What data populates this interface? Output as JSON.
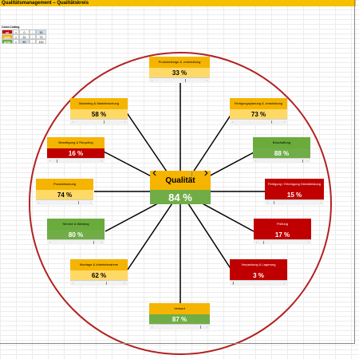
{
  "title": "Qualitätsmanagement – Qualitätskreis",
  "legend": {
    "title": "Color-Coding",
    "rows": [
      {
        "name": "rot",
        "op1": "=",
        "from": "0",
        "op2": "-",
        "to": "30"
      },
      {
        "name": "gelb",
        "op1": "=",
        "from": "31",
        "op2": "-",
        "to": "79"
      },
      {
        "name": "grün",
        "op1": "=",
        "from": "80",
        "op2": "-",
        "to": "100"
      }
    ]
  },
  "center": {
    "name": "Qualität",
    "value": "84 %"
  },
  "areas": [
    {
      "name": "Produktdesign & -entwicklung",
      "value": "33 %",
      "status": "gelb"
    },
    {
      "name": "Marketing & Marktforschung",
      "value": "58 %",
      "status": "gelb"
    },
    {
      "name": "Fertigungsplanung & -entwicklung",
      "value": "73 %",
      "status": "gelb"
    },
    {
      "name": "Beseitigung & Recycling",
      "value": "16 %",
      "status": "rot"
    },
    {
      "name": "Beschaffung",
      "value": "88 %",
      "status": "grün"
    },
    {
      "name": "Produktnutzung",
      "value": "74 %",
      "status": "gelb"
    },
    {
      "name": "Fertigung / Erbringung Dienstleistung",
      "value": "15 %",
      "status": "rot"
    },
    {
      "name": "Service & Wartung",
      "value": "80 %",
      "status": "grün"
    },
    {
      "name": "Prüfung",
      "value": "17 %",
      "status": "rot"
    },
    {
      "name": "Montage & Inbetriebnahme",
      "value": "62 %",
      "status": "gelb"
    },
    {
      "name": "Verpackung & Lagerung",
      "value": "3 %",
      "status": "rot"
    },
    {
      "name": "Verkauf",
      "value": "87 %",
      "status": "grün"
    }
  ],
  "colors": {
    "red": "#c00000",
    "orange": "#f5b400",
    "yellow": "#ffd966",
    "green": "#70ad47",
    "ring": "#b22222"
  }
}
